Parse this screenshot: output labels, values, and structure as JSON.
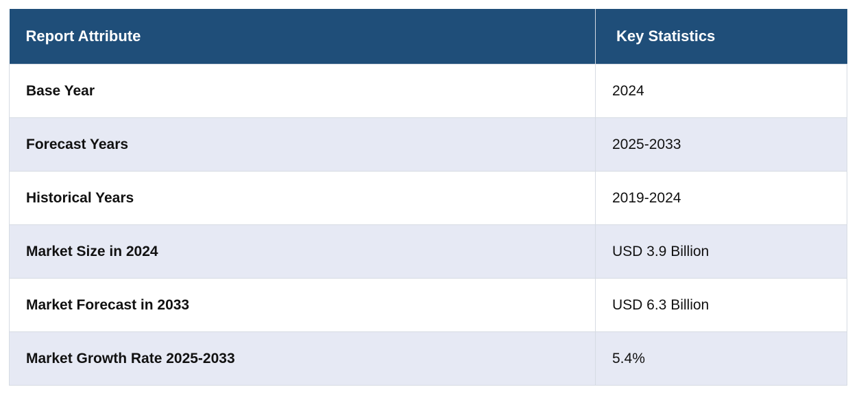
{
  "table": {
    "headers": [
      "Report Attribute",
      "Key Statistics"
    ],
    "rows": [
      {
        "attribute": "Base Year",
        "value": "2024"
      },
      {
        "attribute": "Forecast Years",
        "value": "2025-2033"
      },
      {
        "attribute": "Historical Years",
        "value": "2019-2024"
      },
      {
        "attribute": "Market Size in 2024",
        "value": "USD 3.9 Billion"
      },
      {
        "attribute": "Market Forecast in 2033",
        "value": "USD 6.3 Billion"
      },
      {
        "attribute": "Market Growth Rate 2025-2033",
        "value": "5.4%"
      }
    ]
  },
  "colors": {
    "header_bg": "#1f4e79",
    "header_text": "#ffffff",
    "row_alt_bg": "#e6e9f4",
    "row_bg": "#ffffff",
    "border": "#d6dbe3"
  }
}
